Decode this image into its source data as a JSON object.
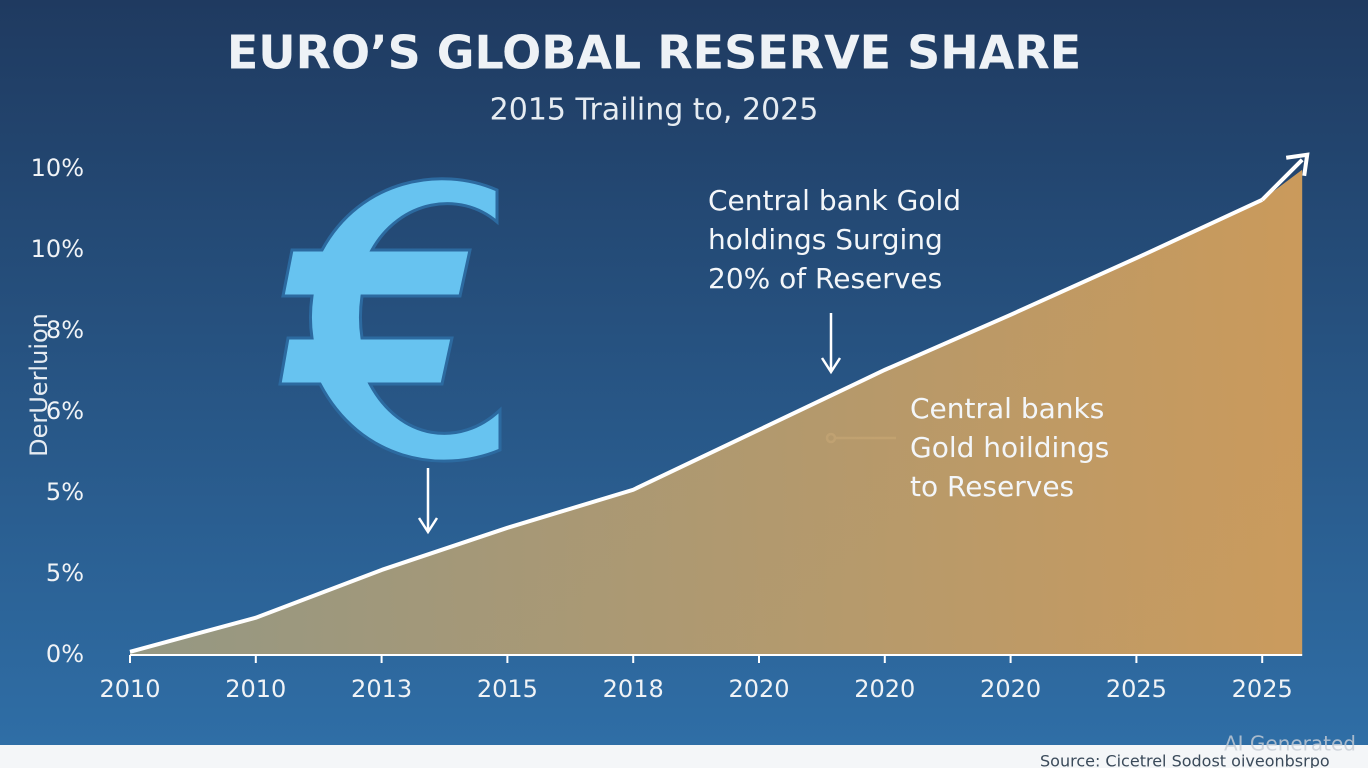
{
  "chart_data": {
    "type": "area",
    "title": "EURO’S GLOBAL RESERVE SHARE",
    "subtitle": "2015 Trailing to, 2025",
    "y_label": "DerUerluion",
    "categories": [
      "2010",
      "2010",
      "2013",
      "2015",
      "2018",
      "2020",
      "2020",
      "2020",
      "2025",
      "2025"
    ],
    "y_categories": [
      "0%",
      "5%",
      "5%",
      "6%",
      "8%",
      "10%",
      "10%"
    ],
    "ylim": [
      0,
      6
    ],
    "values": [
      0.04,
      0.46,
      1.05,
      1.57,
      2.04,
      2.78,
      3.52,
      4.2,
      4.9,
      5.62
    ],
    "color": "#c9975a",
    "annotations": [
      {
        "lines": [
          "Central bank Gold",
          "holdings Surging",
          "20% of Reserves"
        ]
      },
      {
        "lines": [
          "Central banks",
          "Gold hoildings",
          "to Reserves"
        ]
      }
    ],
    "source": "Source: Cicetrel Sodost oiveonbsrpo",
    "watermark": "AI Generated"
  }
}
